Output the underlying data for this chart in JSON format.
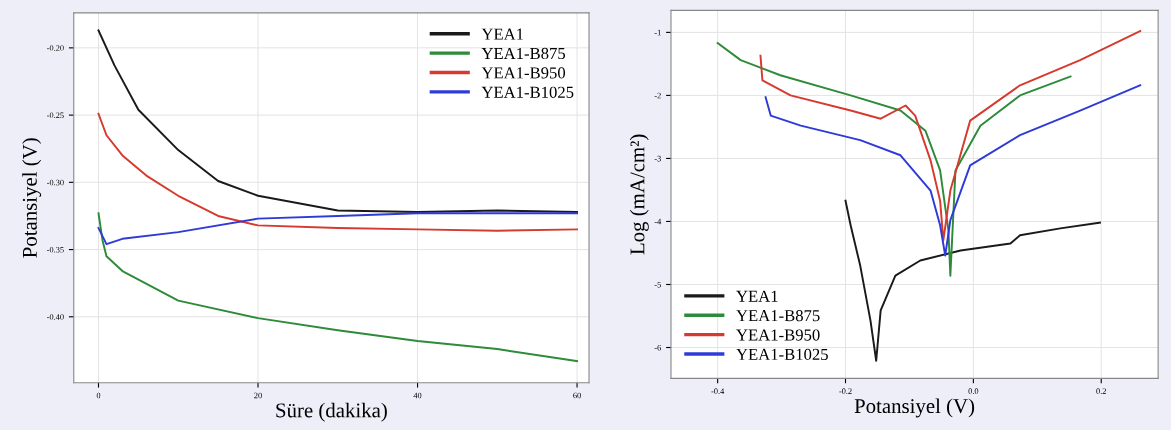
{
  "chart_data": [
    {
      "type": "line",
      "xlabel": "Süre (dakika)",
      "ylabel": "Potansiyel (V)",
      "xlim": [
        -3.1,
        61.5
      ],
      "ylim": [
        -0.449,
        -0.174
      ],
      "xticks": [
        0,
        20,
        40,
        60
      ],
      "yticks": [
        {
          "value": -0.2,
          "label": "-0.20"
        },
        -0.25,
        {
          "value": -0.3,
          "label": "-0.30"
        },
        -0.35,
        {
          "value": -0.4,
          "label": "-0.40"
        }
      ],
      "grid": true,
      "legend": "top right",
      "series": [
        {
          "name": "YEA1",
          "color": "#1a1a1a",
          "x": [
            0,
            2,
            5,
            10,
            15,
            20,
            30,
            40,
            50,
            60
          ],
          "values": [
            -0.187,
            -0.213,
            -0.246,
            -0.276,
            -0.299,
            -0.31,
            -0.321,
            -0.322,
            -0.321,
            -0.322
          ]
        },
        {
          "name": "YEA1-B875",
          "color": "#2e8b3a",
          "x": [
            0,
            0.5,
            1,
            3,
            10,
            20,
            30,
            40,
            50,
            60
          ],
          "values": [
            -0.323,
            -0.343,
            -0.355,
            -0.366,
            -0.388,
            -0.401,
            -0.41,
            -0.418,
            -0.424,
            -0.433
          ]
        },
        {
          "name": "YEA1-B950",
          "color": "#d63a2e",
          "x": [
            0,
            1,
            3,
            6,
            10,
            15,
            20,
            30,
            40,
            50,
            60
          ],
          "values": [
            -0.249,
            -0.265,
            -0.28,
            -0.295,
            -0.31,
            -0.325,
            -0.332,
            -0.334,
            -0.335,
            -0.336,
            -0.335
          ]
        },
        {
          "name": "YEA1-B1025",
          "color": "#2f3bd6",
          "x": [
            0,
            1,
            3,
            10,
            20,
            30,
            40,
            60
          ],
          "values": [
            -0.334,
            -0.346,
            -0.342,
            -0.337,
            -0.327,
            -0.325,
            -0.323,
            -0.323
          ]
        }
      ]
    },
    {
      "type": "line",
      "xlabel": "Potansiyel (V)",
      "ylabel": "Log (mA/cm²)",
      "xlim": [
        -0.473,
        0.289
      ],
      "ylim": [
        -6.49,
        -0.65
      ],
      "xticks": [
        -0.4,
        -0.2,
        {
          "value": 0,
          "label": "0.0"
        },
        0.2
      ],
      "yticks": [
        -1,
        -2,
        -3,
        -4,
        -5,
        -6
      ],
      "grid": true,
      "legend": "bottom left",
      "series": [
        {
          "name": "YEA1",
          "color": "#1a1a1a",
          "x": [
            -0.2,
            -0.192,
            -0.177,
            -0.161,
            -0.152,
            -0.145,
            -0.122,
            -0.083,
            -0.02,
            0.058,
            0.073,
            0.136,
            0.198
          ],
          "values": [
            -3.67,
            -4.06,
            -4.7,
            -5.57,
            -6.21,
            -5.41,
            -4.86,
            -4.62,
            -4.46,
            -4.35,
            -4.22,
            -4.11,
            -4.02
          ]
        },
        {
          "name": "YEA1-B875",
          "color": "#2e8b3a",
          "x": [
            -0.4,
            -0.364,
            -0.302,
            -0.192,
            -0.114,
            -0.075,
            -0.052,
            -0.039,
            -0.036,
            -0.028,
            0.011,
            0.073,
            0.152
          ],
          "values": [
            -1.17,
            -1.44,
            -1.68,
            -2.0,
            -2.24,
            -2.56,
            -3.19,
            -4.14,
            -4.86,
            -3.19,
            -2.48,
            -2.0,
            -1.7
          ]
        },
        {
          "name": "YEA1-B950",
          "color": "#d63a2e",
          "x": [
            -0.333,
            -0.33,
            -0.286,
            -0.192,
            -0.145,
            -0.106,
            -0.091,
            -0.067,
            -0.052,
            -0.047,
            -0.036,
            -0.005,
            0.073,
            0.167,
            0.261
          ],
          "values": [
            -1.37,
            -1.76,
            -2.0,
            -2.24,
            -2.37,
            -2.16,
            -2.32,
            -3.03,
            -3.67,
            -4.3,
            -3.51,
            -2.4,
            -1.84,
            -1.44,
            -0.98
          ]
        },
        {
          "name": "YEA1-B1025",
          "color": "#2f3bd6",
          "x": [
            -0.325,
            -0.317,
            -0.27,
            -0.177,
            -0.114,
            -0.067,
            -0.052,
            -0.044,
            -0.036,
            -0.005,
            0.073,
            0.167,
            0.261
          ],
          "values": [
            -2.03,
            -2.32,
            -2.48,
            -2.71,
            -2.95,
            -3.51,
            -4.06,
            -4.54,
            -3.98,
            -3.11,
            -2.63,
            -2.24,
            -1.84
          ]
        }
      ]
    }
  ]
}
